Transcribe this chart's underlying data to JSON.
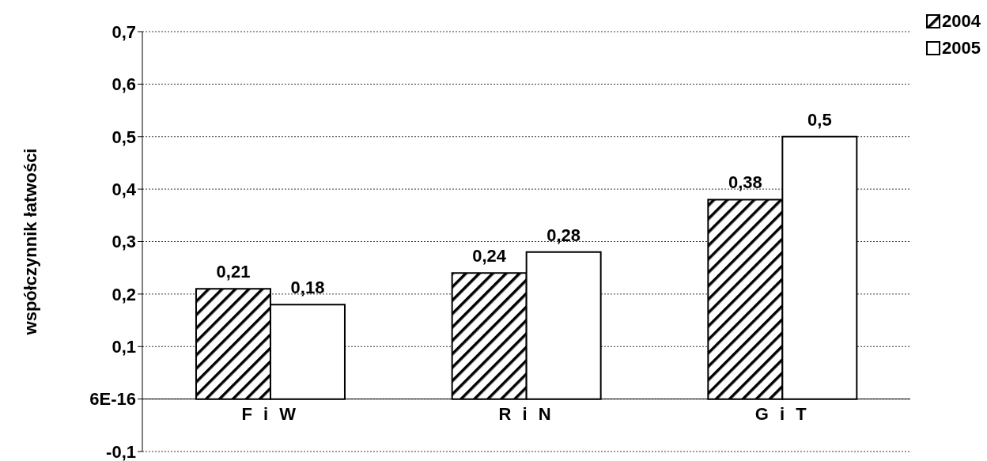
{
  "chart_data": {
    "type": "bar",
    "ylabel": "współczynnik łatwości",
    "categories": [
      "F i W",
      "R i N",
      "G i T"
    ],
    "series": [
      {
        "name": "2004",
        "color": "#000000",
        "values": [
          0.21,
          0.24,
          0.38
        ],
        "value_labels": [
          "0,21",
          "0,24",
          "0,38"
        ]
      },
      {
        "name": "2005",
        "color": "#ffffff",
        "values": [
          0.18,
          0.28,
          0.5
        ],
        "value_labels": [
          "0,18",
          "0,28",
          "0,5"
        ]
      }
    ],
    "ylim": [
      -0.1,
      0.7
    ],
    "yticks": [
      {
        "value": -0.1,
        "label": "-0,1"
      },
      {
        "value": 0,
        "label": "6E-16"
      },
      {
        "value": 0.1,
        "label": "0,1"
      },
      {
        "value": 0.2,
        "label": "0,2"
      },
      {
        "value": 0.3,
        "label": "0,3"
      },
      {
        "value": 0.4,
        "label": "0,4"
      },
      {
        "value": 0.5,
        "label": "0,5"
      },
      {
        "value": 0.6,
        "label": "0,6"
      },
      {
        "value": 0.7,
        "label": "0,7"
      }
    ],
    "grid": "y",
    "legend": "top right"
  }
}
